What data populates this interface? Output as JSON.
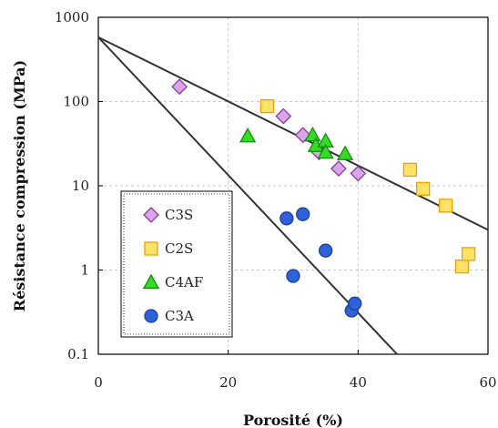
{
  "chart_data": {
    "type": "scatter",
    "xlabel": "Porosité (%)",
    "ylabel": "Résistance compression (MPa)",
    "xlim": [
      0,
      60
    ],
    "ylim": [
      0.1,
      1000
    ],
    "yscale": "log",
    "x_ticks": [
      "0",
      "20",
      "40",
      "60"
    ],
    "y_ticks": [
      "0.1",
      "1",
      "10",
      "100",
      "1000"
    ],
    "grid": true,
    "legend_position": "bottom-left",
    "series": [
      {
        "name": "C3S",
        "marker": "diamond",
        "fill": "#d9a6e8",
        "stroke": "#8a3aa0",
        "points": [
          [
            12.5,
            150
          ],
          [
            28.5,
            67
          ],
          [
            31.5,
            40
          ],
          [
            34,
            25
          ],
          [
            37,
            16
          ],
          [
            40,
            14
          ]
        ]
      },
      {
        "name": "C2S",
        "marker": "square",
        "fill": "#ffe26a",
        "stroke": "#f0a000",
        "points": [
          [
            26,
            88
          ],
          [
            48,
            15.5
          ],
          [
            50,
            9.2
          ],
          [
            53.5,
            5.8
          ],
          [
            56,
            1.1
          ],
          [
            57,
            1.55
          ]
        ]
      },
      {
        "name": "C4AF",
        "marker": "triangle",
        "fill": "#33dd22",
        "stroke": "#138a10",
        "points": [
          [
            23,
            39
          ],
          [
            33,
            40
          ],
          [
            33.5,
            30
          ],
          [
            35,
            34
          ],
          [
            35,
            25
          ],
          [
            38,
            24
          ]
        ]
      },
      {
        "name": "C3A",
        "marker": "circle",
        "fill": "#2f62d8",
        "stroke": "#1b3f99",
        "points": [
          [
            29,
            4.1
          ],
          [
            31.5,
            4.6
          ],
          [
            30,
            0.85
          ],
          [
            35,
            1.7
          ],
          [
            39,
            0.33
          ],
          [
            39.5,
            0.4
          ]
        ]
      }
    ],
    "lines": [
      {
        "x": [
          0,
          60
        ],
        "y": [
          580,
          3
        ]
      },
      {
        "x": [
          0,
          46
        ],
        "y": [
          580,
          0.1
        ]
      }
    ]
  }
}
